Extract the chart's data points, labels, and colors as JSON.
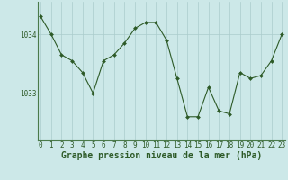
{
  "x": [
    0,
    1,
    2,
    3,
    4,
    5,
    6,
    7,
    8,
    9,
    10,
    11,
    12,
    13,
    14,
    15,
    16,
    17,
    18,
    19,
    20,
    21,
    22,
    23
  ],
  "y": [
    1034.3,
    1034.0,
    1033.65,
    1033.55,
    1033.35,
    1033.0,
    1033.55,
    1033.65,
    1033.85,
    1034.1,
    1034.2,
    1034.2,
    1033.9,
    1033.25,
    1032.6,
    1032.6,
    1033.1,
    1032.7,
    1032.65,
    1033.35,
    1033.25,
    1033.3,
    1033.55,
    1034.0
  ],
  "line_color": "#2d5a27",
  "marker": "D",
  "marker_size": 2,
  "bg_color": "#cce8e8",
  "grid_color": "#aacccc",
  "ylabel_ticks": [
    1033,
    1034
  ],
  "xlabel_ticks": [
    0,
    1,
    2,
    3,
    4,
    5,
    6,
    7,
    8,
    9,
    10,
    11,
    12,
    13,
    14,
    15,
    16,
    17,
    18,
    19,
    20,
    21,
    22,
    23
  ],
  "xlabel_label": "Graphe pression niveau de la mer (hPa)",
  "ylim": [
    1032.2,
    1034.55
  ],
  "xlim": [
    -0.3,
    23.3
  ],
  "tick_fontsize": 5.5,
  "xlabel_fontsize": 7,
  "border_color": "#4a7a4a"
}
